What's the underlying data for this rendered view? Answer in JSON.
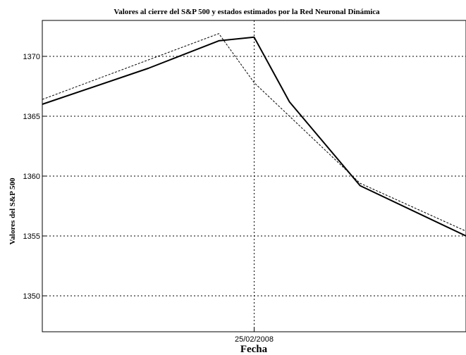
{
  "chart_data": {
    "type": "line",
    "title": "Valores al cierre del S&P 500 y estados estimados por la Red Neuronal Dinámica",
    "xlabel": "Fecha",
    "ylabel": "Valores del S&P 500",
    "x": [
      0,
      1,
      2,
      3,
      4,
      5
    ],
    "x_ticks": [
      {
        "x": 2,
        "label": "25/02/2008"
      }
    ],
    "xlim": [
      -1.0,
      5.0
    ],
    "ylim": [
      1347,
      1373
    ],
    "y_ticks": [
      1350,
      1355,
      1360,
      1365,
      1370
    ],
    "grid": true,
    "legend": "none",
    "series": [
      {
        "style": "solid",
        "color": "#000000",
        "x": [
          -1.0,
          0.5,
          1.5,
          2.0,
          2.5,
          3.5,
          5.0
        ],
        "values": [
          1366.0,
          1369.0,
          1371.3,
          1371.6,
          1366.2,
          1359.2,
          1355.0
        ]
      },
      {
        "style": "dashed",
        "color": "#000000",
        "x": [
          -1.0,
          1.5,
          2.0,
          3.5,
          5.0
        ],
        "values": [
          1366.4,
          1371.9,
          1367.8,
          1359.4,
          1355.4
        ]
      }
    ]
  }
}
